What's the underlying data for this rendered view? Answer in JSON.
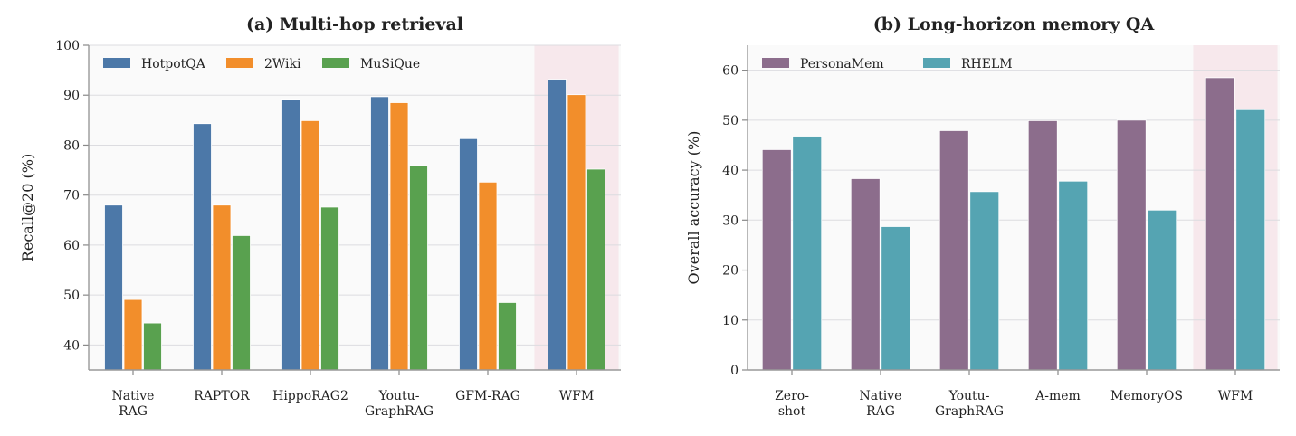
{
  "chart_data": [
    {
      "type": "bar",
      "title": "(a) Multi-hop retrieval",
      "xlabel": "",
      "ylabel": "Recall@20 (%)",
      "ylim": [
        35,
        100
      ],
      "yticks": [
        40,
        50,
        60,
        70,
        80,
        90,
        100
      ],
      "grid": true,
      "legend": "top-left",
      "highlight_category": "WFM",
      "categories": [
        "Native\nRAG",
        "RAPTOR",
        "HippoRAG2",
        "Youtu-\nGraphRAG",
        "GFM-RAG",
        "WFM"
      ],
      "series": [
        {
          "name": "HotpotQA",
          "color": "#4c78a8",
          "values": [
            68.0,
            84.3,
            89.2,
            89.7,
            81.3,
            93.2
          ]
        },
        {
          "name": "2Wiki",
          "color": "#f28e2b",
          "values": [
            49.1,
            68.0,
            84.9,
            88.5,
            72.6,
            90.1
          ]
        },
        {
          "name": "MuSiQue",
          "color": "#59a14f",
          "values": [
            44.4,
            61.9,
            67.6,
            75.9,
            48.5,
            75.2
          ]
        }
      ]
    },
    {
      "type": "bar",
      "title": "(b) Long-horizon memory QA",
      "xlabel": "",
      "ylabel": "Overall accuracy (%)",
      "ylim": [
        0,
        65
      ],
      "yticks": [
        0,
        10,
        20,
        30,
        40,
        50,
        60
      ],
      "grid": true,
      "legend": "top-left",
      "highlight_category": "WFM",
      "categories": [
        "Zero-\nshot",
        "Native\nRAG",
        "Youtu-\nGraphRAG",
        "A-mem",
        "MemoryOS",
        "WFM"
      ],
      "series": [
        {
          "name": "PersonaMem",
          "color": "#8c6d8c",
          "values": [
            44.1,
            38.3,
            47.9,
            49.9,
            50.0,
            58.5
          ]
        },
        {
          "name": "RHELM",
          "color": "#55a4b2",
          "values": [
            46.8,
            28.7,
            35.7,
            37.8,
            32.0,
            52.1
          ]
        }
      ]
    }
  ]
}
